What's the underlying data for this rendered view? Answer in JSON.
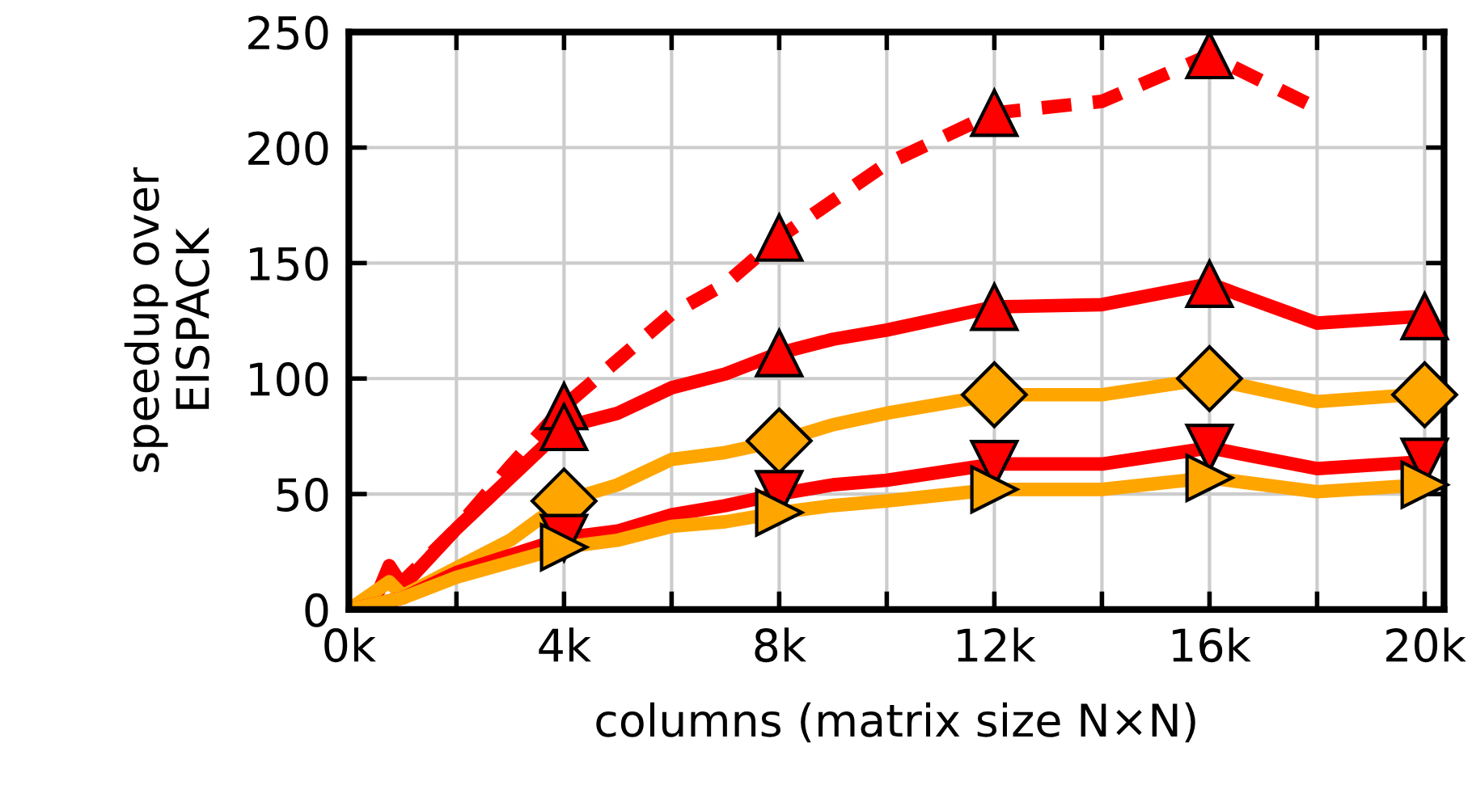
{
  "chart_data": {
    "type": "line",
    "xlabel": "columns (matrix size N×N)",
    "ylabel": "speedup over\nEISPACK",
    "xlim": [
      0,
      20.36
    ],
    "ylim": [
      0,
      250
    ],
    "xticks": [
      {
        "value": 0,
        "label": "0k"
      },
      {
        "value": 4,
        "label": "4k"
      },
      {
        "value": 8,
        "label": "8k"
      },
      {
        "value": 12,
        "label": "12k"
      },
      {
        "value": 16,
        "label": "16k"
      },
      {
        "value": 20,
        "label": "20k"
      }
    ],
    "yticks": [
      0,
      50,
      100,
      150,
      200,
      250
    ],
    "grid": true,
    "series": [
      {
        "color": "#ff0000",
        "line_style": "dashed",
        "x": [
          0,
          1,
          2,
          3,
          4,
          5,
          6,
          7,
          8,
          9,
          10,
          12,
          14,
          16,
          18
        ],
        "values": [
          0,
          12,
          35,
          62,
          88,
          108,
          128,
          141,
          161,
          177,
          193,
          215,
          220,
          240,
          217
        ]
      },
      {
        "color": "#ff0000",
        "line_style": "solid",
        "x": [
          0,
          0.5,
          0.75,
          1,
          2,
          4,
          5,
          6,
          7,
          8,
          9,
          10,
          12,
          14,
          16,
          18,
          20
        ],
        "values": [
          0,
          5,
          19,
          10,
          35,
          79,
          85,
          96,
          102,
          111,
          117,
          121,
          131,
          132,
          141,
          124,
          127
        ]
      },
      {
        "color": "#ffa500",
        "line_style": "solid",
        "x": [
          0,
          0.75,
          1,
          2,
          3,
          4,
          5,
          6,
          7,
          8,
          9,
          10,
          12,
          14,
          16,
          18,
          20.36
        ],
        "values": [
          0,
          12,
          6,
          18,
          30,
          47,
          54,
          65,
          68,
          73,
          80,
          85,
          93,
          93,
          100,
          90,
          94
        ]
      },
      {
        "color": "#ff0000",
        "line_style": "solid",
        "x": [
          0,
          1,
          2,
          4,
          5,
          6,
          7,
          8,
          9,
          10,
          12,
          14,
          16,
          18,
          20
        ],
        "values": [
          0,
          5,
          16,
          31,
          34,
          41,
          45,
          50,
          54,
          56,
          63,
          63,
          70,
          61,
          64
        ]
      },
      {
        "color": "#ffa500",
        "line_style": "solid",
        "x": [
          0,
          1,
          2,
          4,
          5,
          6,
          7,
          8,
          9,
          10,
          12,
          14,
          16,
          18,
          20
        ],
        "values": [
          0,
          5,
          14,
          27,
          30,
          36,
          38,
          42,
          45,
          47,
          52,
          52,
          57,
          51,
          54
        ]
      },
      {
        "type": "scatter",
        "color": "#ff0000",
        "marker": "triangle",
        "x": [
          4,
          8,
          12,
          16
        ],
        "values": [
          88,
          161,
          215,
          240
        ]
      },
      {
        "type": "scatter",
        "color": "#ff0000",
        "marker": "triangle",
        "x": [
          4,
          8,
          12,
          16,
          20
        ],
        "values": [
          79,
          111,
          131,
          141,
          127
        ]
      },
      {
        "type": "scatter",
        "color": "#ffa500",
        "marker": "diamond",
        "x": [
          4,
          8,
          12,
          16,
          20
        ],
        "values": [
          47,
          73,
          93,
          100,
          93
        ]
      },
      {
        "type": "scatter",
        "color": "#ff0000",
        "marker": "triangle_down",
        "x": [
          4,
          8,
          12,
          16,
          20
        ],
        "values": [
          31,
          50,
          63,
          70,
          64
        ]
      },
      {
        "type": "scatter",
        "color": "#ffa500",
        "marker": "triangle_right",
        "x": [
          4,
          8,
          12,
          16,
          20
        ],
        "values": [
          27,
          42,
          52,
          57,
          54
        ]
      }
    ]
  }
}
